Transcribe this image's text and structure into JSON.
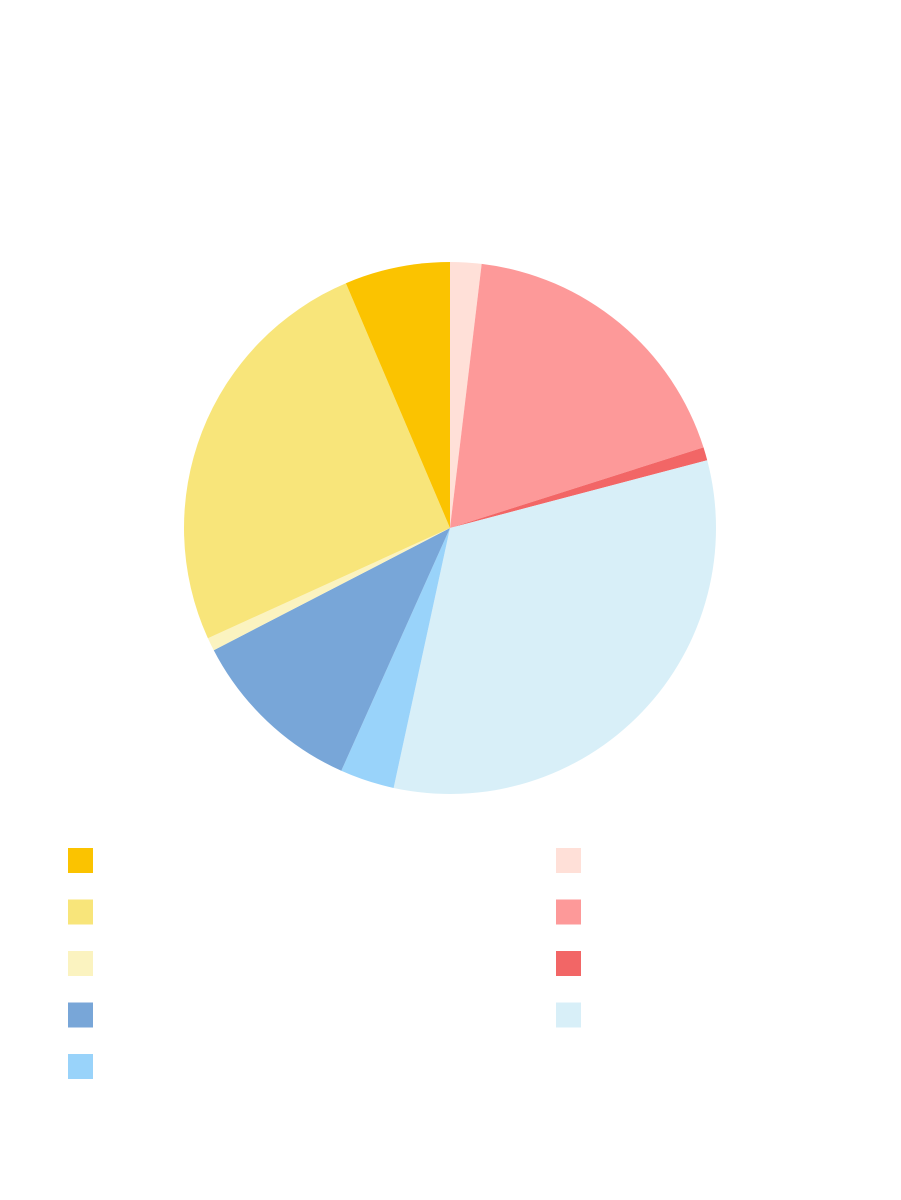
{
  "chart_data": {
    "type": "pie",
    "values": [
      1.9,
      18.2,
      0.8,
      32.5,
      3.3,
      10.7,
      0.8,
      25.4,
      6.4
    ],
    "colors": [
      "#ffe0d8",
      "#fd9999",
      "#f26666",
      "#d8eff8",
      "#99d3fa",
      "#78a6d8",
      "#fbf3c0",
      "#f8e57a",
      "#fbc300"
    ],
    "legend": true
  }
}
